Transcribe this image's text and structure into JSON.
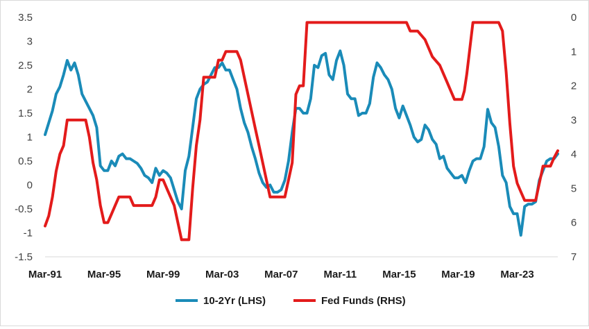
{
  "chart_data": {
    "type": "line",
    "title": "",
    "xlabel": "",
    "ylabel": "",
    "x_range": [
      "1991-03",
      "2025-12"
    ],
    "x_tick_labels": [
      "Mar-91",
      "Mar-95",
      "Mar-99",
      "Mar-03",
      "Mar-07",
      "Mar-11",
      "Mar-15",
      "Mar-19",
      "Mar-23"
    ],
    "x_tick_dates": [
      "1991-03",
      "1995-03",
      "1999-03",
      "2003-03",
      "2007-03",
      "2011-03",
      "2015-03",
      "2019-03",
      "2023-03"
    ],
    "left_axis": {
      "ylim": [
        -1.5,
        3.5
      ],
      "ticks": [
        "3.5",
        "3",
        "2.5",
        "2",
        "1.5",
        "1",
        "0.5",
        "0",
        "-0.5",
        "-1",
        "-1.5"
      ],
      "tick_values": [
        3.5,
        3,
        2.5,
        2,
        1.5,
        1,
        0.5,
        0,
        -0.5,
        -1,
        -1.5
      ]
    },
    "right_axis": {
      "inverted": true,
      "ylim": [
        0,
        7
      ],
      "ticks": [
        "0",
        "1",
        "2",
        "3",
        "4",
        "5",
        "6",
        "7"
      ],
      "tick_values": [
        0,
        1,
        2,
        3,
        4,
        5,
        6,
        7
      ]
    },
    "grid": false,
    "legend_position": "bottom",
    "series": [
      {
        "name": "10-2Yr (LHS)",
        "axis": "left",
        "color": "#1a8bb8",
        "points": [
          [
            "1991-03",
            1.05
          ],
          [
            "1991-06",
            1.3
          ],
          [
            "1991-09",
            1.55
          ],
          [
            "1991-12",
            1.9
          ],
          [
            "1992-03",
            2.05
          ],
          [
            "1992-06",
            2.3
          ],
          [
            "1992-09",
            2.6
          ],
          [
            "1992-12",
            2.4
          ],
          [
            "1993-03",
            2.55
          ],
          [
            "1993-06",
            2.3
          ],
          [
            "1993-09",
            1.9
          ],
          [
            "1993-12",
            1.75
          ],
          [
            "1994-03",
            1.6
          ],
          [
            "1994-06",
            1.45
          ],
          [
            "1994-09",
            1.2
          ],
          [
            "1994-12",
            0.4
          ],
          [
            "1995-03",
            0.3
          ],
          [
            "1995-06",
            0.3
          ],
          [
            "1995-09",
            0.5
          ],
          [
            "1995-12",
            0.4
          ],
          [
            "1996-03",
            0.6
          ],
          [
            "1996-06",
            0.65
          ],
          [
            "1996-09",
            0.55
          ],
          [
            "1996-12",
            0.55
          ],
          [
            "1997-03",
            0.5
          ],
          [
            "1997-06",
            0.45
          ],
          [
            "1997-09",
            0.35
          ],
          [
            "1997-12",
            0.2
          ],
          [
            "1998-03",
            0.15
          ],
          [
            "1998-06",
            0.05
          ],
          [
            "1998-09",
            0.35
          ],
          [
            "1998-12",
            0.2
          ],
          [
            "1999-03",
            0.3
          ],
          [
            "1999-06",
            0.25
          ],
          [
            "1999-09",
            0.15
          ],
          [
            "1999-12",
            -0.1
          ],
          [
            "2000-03",
            -0.35
          ],
          [
            "2000-06",
            -0.5
          ],
          [
            "2000-09",
            0.3
          ],
          [
            "2000-12",
            0.6
          ],
          [
            "2001-03",
            1.2
          ],
          [
            "2001-06",
            1.8
          ],
          [
            "2001-09",
            2.0
          ],
          [
            "2001-12",
            2.1
          ],
          [
            "2002-03",
            2.15
          ],
          [
            "2002-06",
            2.3
          ],
          [
            "2002-09",
            2.45
          ],
          [
            "2002-12",
            2.45
          ],
          [
            "2003-03",
            2.55
          ],
          [
            "2003-06",
            2.4
          ],
          [
            "2003-09",
            2.4
          ],
          [
            "2003-12",
            2.2
          ],
          [
            "2004-03",
            2.0
          ],
          [
            "2004-06",
            1.6
          ],
          [
            "2004-09",
            1.3
          ],
          [
            "2004-12",
            1.1
          ],
          [
            "2005-03",
            0.8
          ],
          [
            "2005-06",
            0.55
          ],
          [
            "2005-09",
            0.25
          ],
          [
            "2005-12",
            0.05
          ],
          [
            "2006-03",
            -0.05
          ],
          [
            "2006-06",
            0.0
          ],
          [
            "2006-09",
            -0.15
          ],
          [
            "2006-12",
            -0.15
          ],
          [
            "2007-03",
            -0.1
          ],
          [
            "2007-06",
            0.1
          ],
          [
            "2007-09",
            0.5
          ],
          [
            "2007-12",
            1.1
          ],
          [
            "2008-03",
            1.6
          ],
          [
            "2008-06",
            1.6
          ],
          [
            "2008-09",
            1.5
          ],
          [
            "2008-12",
            1.5
          ],
          [
            "2009-03",
            1.8
          ],
          [
            "2009-06",
            2.5
          ],
          [
            "2009-09",
            2.45
          ],
          [
            "2009-12",
            2.7
          ],
          [
            "2010-03",
            2.75
          ],
          [
            "2010-06",
            2.3
          ],
          [
            "2010-09",
            2.2
          ],
          [
            "2010-12",
            2.6
          ],
          [
            "2011-03",
            2.8
          ],
          [
            "2011-06",
            2.5
          ],
          [
            "2011-09",
            1.9
          ],
          [
            "2011-12",
            1.8
          ],
          [
            "2012-03",
            1.8
          ],
          [
            "2012-06",
            1.45
          ],
          [
            "2012-09",
            1.5
          ],
          [
            "2012-12",
            1.5
          ],
          [
            "2013-03",
            1.7
          ],
          [
            "2013-06",
            2.25
          ],
          [
            "2013-09",
            2.55
          ],
          [
            "2013-12",
            2.45
          ],
          [
            "2014-03",
            2.3
          ],
          [
            "2014-06",
            2.2
          ],
          [
            "2014-09",
            2.0
          ],
          [
            "2014-12",
            1.6
          ],
          [
            "2015-03",
            1.4
          ],
          [
            "2015-06",
            1.65
          ],
          [
            "2015-09",
            1.45
          ],
          [
            "2015-12",
            1.25
          ],
          [
            "2016-03",
            1.0
          ],
          [
            "2016-06",
            0.9
          ],
          [
            "2016-09",
            0.95
          ],
          [
            "2016-12",
            1.25
          ],
          [
            "2017-03",
            1.15
          ],
          [
            "2017-06",
            0.95
          ],
          [
            "2017-09",
            0.85
          ],
          [
            "2017-12",
            0.55
          ],
          [
            "2018-03",
            0.6
          ],
          [
            "2018-06",
            0.35
          ],
          [
            "2018-09",
            0.25
          ],
          [
            "2018-12",
            0.15
          ],
          [
            "2019-03",
            0.15
          ],
          [
            "2019-06",
            0.2
          ],
          [
            "2019-09",
            0.05
          ],
          [
            "2019-12",
            0.3
          ],
          [
            "2020-03",
            0.5
          ],
          [
            "2020-06",
            0.55
          ],
          [
            "2020-09",
            0.55
          ],
          [
            "2020-12",
            0.8
          ],
          [
            "2021-03",
            1.58
          ],
          [
            "2021-06",
            1.3
          ],
          [
            "2021-09",
            1.2
          ],
          [
            "2021-12",
            0.8
          ],
          [
            "2022-03",
            0.2
          ],
          [
            "2022-06",
            0.05
          ],
          [
            "2022-09",
            -0.45
          ],
          [
            "2022-12",
            -0.6
          ],
          [
            "2023-03",
            -0.6
          ],
          [
            "2023-06",
            -1.05
          ],
          [
            "2023-09",
            -0.45
          ],
          [
            "2023-12",
            -0.4
          ],
          [
            "2024-03",
            -0.4
          ],
          [
            "2024-06",
            -0.35
          ],
          [
            "2024-09",
            0.1
          ],
          [
            "2024-12",
            0.3
          ],
          [
            "2025-03",
            0.5
          ],
          [
            "2025-06",
            0.55
          ],
          [
            "2025-09",
            0.55
          ],
          [
            "2025-12",
            0.65
          ]
        ]
      },
      {
        "name": "Fed Funds (RHS)",
        "axis": "right",
        "color": "#e31b1b",
        "points": [
          [
            "1991-03",
            6.1
          ],
          [
            "1991-06",
            5.8
          ],
          [
            "1991-09",
            5.25
          ],
          [
            "1991-12",
            4.5
          ],
          [
            "1992-03",
            4.0
          ],
          [
            "1992-06",
            3.75
          ],
          [
            "1992-09",
            3.0
          ],
          [
            "1992-12",
            3.0
          ],
          [
            "1993-03",
            3.0
          ],
          [
            "1993-06",
            3.0
          ],
          [
            "1993-09",
            3.0
          ],
          [
            "1993-12",
            3.0
          ],
          [
            "1994-03",
            3.5
          ],
          [
            "1994-06",
            4.25
          ],
          [
            "1994-09",
            4.75
          ],
          [
            "1994-12",
            5.5
          ],
          [
            "1995-03",
            6.0
          ],
          [
            "1995-06",
            6.0
          ],
          [
            "1995-09",
            5.75
          ],
          [
            "1995-12",
            5.5
          ],
          [
            "1996-03",
            5.25
          ],
          [
            "1996-06",
            5.25
          ],
          [
            "1996-09",
            5.25
          ],
          [
            "1996-12",
            5.25
          ],
          [
            "1997-03",
            5.5
          ],
          [
            "1997-06",
            5.5
          ],
          [
            "1997-09",
            5.5
          ],
          [
            "1997-12",
            5.5
          ],
          [
            "1998-03",
            5.5
          ],
          [
            "1998-06",
            5.5
          ],
          [
            "1998-09",
            5.25
          ],
          [
            "1998-12",
            4.75
          ],
          [
            "1999-03",
            4.75
          ],
          [
            "1999-06",
            5.0
          ],
          [
            "1999-09",
            5.25
          ],
          [
            "1999-12",
            5.5
          ],
          [
            "2000-03",
            6.0
          ],
          [
            "2000-06",
            6.5
          ],
          [
            "2000-09",
            6.5
          ],
          [
            "2000-12",
            6.5
          ],
          [
            "2001-03",
            5.0
          ],
          [
            "2001-06",
            3.75
          ],
          [
            "2001-09",
            3.0
          ],
          [
            "2001-12",
            1.75
          ],
          [
            "2002-03",
            1.75
          ],
          [
            "2002-06",
            1.75
          ],
          [
            "2002-09",
            1.75
          ],
          [
            "2002-12",
            1.25
          ],
          [
            "2003-03",
            1.25
          ],
          [
            "2003-06",
            1.0
          ],
          [
            "2003-09",
            1.0
          ],
          [
            "2003-12",
            1.0
          ],
          [
            "2004-03",
            1.0
          ],
          [
            "2004-06",
            1.25
          ],
          [
            "2004-09",
            1.75
          ],
          [
            "2004-12",
            2.25
          ],
          [
            "2005-03",
            2.75
          ],
          [
            "2005-06",
            3.25
          ],
          [
            "2005-09",
            3.75
          ],
          [
            "2005-12",
            4.25
          ],
          [
            "2006-03",
            4.75
          ],
          [
            "2006-06",
            5.25
          ],
          [
            "2006-09",
            5.25
          ],
          [
            "2006-12",
            5.25
          ],
          [
            "2007-03",
            5.25
          ],
          [
            "2007-06",
            5.25
          ],
          [
            "2007-09",
            4.75
          ],
          [
            "2007-12",
            4.25
          ],
          [
            "2008-03",
            2.25
          ],
          [
            "2008-06",
            2.0
          ],
          [
            "2008-09",
            2.0
          ],
          [
            "2008-12",
            0.15
          ],
          [
            "2009-03",
            0.15
          ],
          [
            "2009-06",
            0.15
          ],
          [
            "2009-12",
            0.15
          ],
          [
            "2011-03",
            0.15
          ],
          [
            "2013-03",
            0.15
          ],
          [
            "2015-03",
            0.15
          ],
          [
            "2015-09",
            0.15
          ],
          [
            "2015-12",
            0.4
          ],
          [
            "2016-06",
            0.4
          ],
          [
            "2016-12",
            0.65
          ],
          [
            "2017-03",
            0.9
          ],
          [
            "2017-06",
            1.15
          ],
          [
            "2017-12",
            1.4
          ],
          [
            "2018-03",
            1.65
          ],
          [
            "2018-06",
            1.9
          ],
          [
            "2018-09",
            2.15
          ],
          [
            "2018-12",
            2.4
          ],
          [
            "2019-06",
            2.4
          ],
          [
            "2019-08",
            2.15
          ],
          [
            "2019-09",
            1.9
          ],
          [
            "2019-10",
            1.65
          ],
          [
            "2020-03",
            0.15
          ],
          [
            "2020-06",
            0.15
          ],
          [
            "2021-06",
            0.15
          ],
          [
            "2021-12",
            0.15
          ],
          [
            "2022-03",
            0.4
          ],
          [
            "2022-06",
            1.6
          ],
          [
            "2022-09",
            3.1
          ],
          [
            "2022-12",
            4.35
          ],
          [
            "2023-03",
            4.85
          ],
          [
            "2023-06",
            5.1
          ],
          [
            "2023-09",
            5.35
          ],
          [
            "2023-12",
            5.35
          ],
          [
            "2024-03",
            5.35
          ],
          [
            "2024-06",
            5.35
          ],
          [
            "2024-09",
            4.85
          ],
          [
            "2024-12",
            4.35
          ],
          [
            "2025-03",
            4.35
          ],
          [
            "2025-06",
            4.35
          ],
          [
            "2025-09",
            4.1
          ],
          [
            "2025-12",
            3.9
          ]
        ]
      }
    ]
  }
}
